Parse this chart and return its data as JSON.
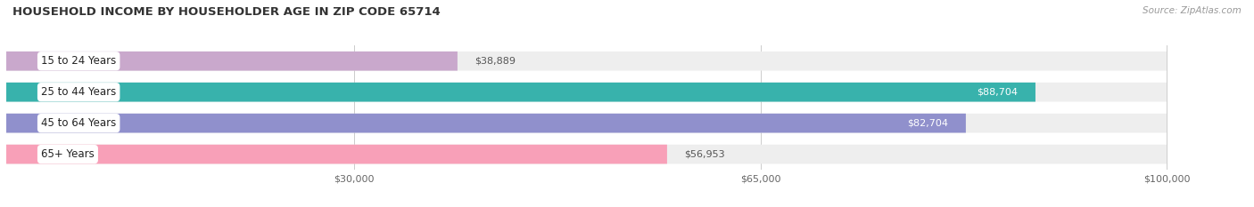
{
  "title": "HOUSEHOLD INCOME BY HOUSEHOLDER AGE IN ZIP CODE 65714",
  "source": "Source: ZipAtlas.com",
  "categories": [
    "15 to 24 Years",
    "25 to 44 Years",
    "45 to 64 Years",
    "65+ Years"
  ],
  "values": [
    38889,
    88704,
    82704,
    56953
  ],
  "bar_colors": [
    "#c9a8cc",
    "#38b2ac",
    "#9090cc",
    "#f8a0b8"
  ],
  "bar_bg_color": "#eeeeee",
  "value_labels": [
    "$38,889",
    "$88,704",
    "$82,704",
    "$56,953"
  ],
  "value_inside": [
    false,
    true,
    true,
    false
  ],
  "x_ticks": [
    30000,
    65000,
    100000
  ],
  "x_tick_labels": [
    "$30,000",
    "$65,000",
    "$100,000"
  ],
  "xmax": 100000,
  "xlim_max": 107000,
  "figsize": [
    14.06,
    2.33
  ],
  "dpi": 100,
  "background_color": "#ffffff",
  "title_fontsize": 9.5,
  "source_fontsize": 7.5,
  "bar_label_fontsize": 8,
  "tick_fontsize": 8,
  "category_fontsize": 8.5,
  "bar_height": 0.62,
  "bar_gap": 0.38
}
